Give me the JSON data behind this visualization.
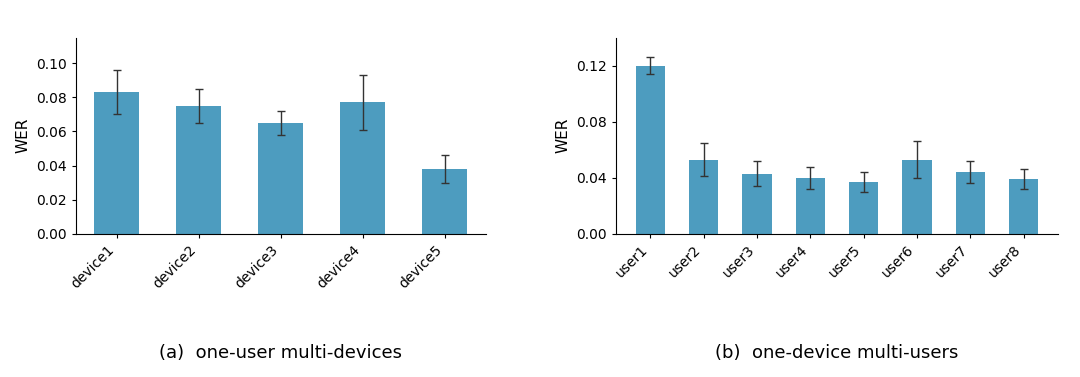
{
  "chart_a": {
    "categories": [
      "device1",
      "device2",
      "device3",
      "device4",
      "device5"
    ],
    "values": [
      0.083,
      0.075,
      0.065,
      0.077,
      0.038
    ],
    "errors": [
      0.013,
      0.01,
      0.007,
      0.016,
      0.008
    ],
    "ylabel": "WER",
    "ylim": [
      0,
      0.115
    ],
    "yticks": [
      0.0,
      0.02,
      0.04,
      0.06,
      0.08,
      0.1
    ],
    "caption": "(a)  one-user multi-devices"
  },
  "chart_b": {
    "categories": [
      "user1",
      "user2",
      "user3",
      "user4",
      "user5",
      "user6",
      "user7",
      "user8"
    ],
    "values": [
      0.12,
      0.053,
      0.043,
      0.04,
      0.037,
      0.053,
      0.044,
      0.039
    ],
    "errors": [
      0.006,
      0.012,
      0.009,
      0.008,
      0.007,
      0.013,
      0.008,
      0.007
    ],
    "ylabel": "WER",
    "ylim": [
      0,
      0.14
    ],
    "yticks": [
      0.0,
      0.04,
      0.08,
      0.12
    ],
    "caption": "(b)  one-device multi-users"
  },
  "bar_color": "#4d9cbf",
  "bar_edge_color": "none",
  "error_color": "#333333",
  "error_capsize": 3,
  "error_lw": 1.0,
  "tick_rotation": 45,
  "tick_ha": "right",
  "background_color": "#ffffff",
  "caption_fontsize": 13,
  "ylabel_fontsize": 11,
  "tick_fontsize": 10,
  "bar_width": 0.55
}
